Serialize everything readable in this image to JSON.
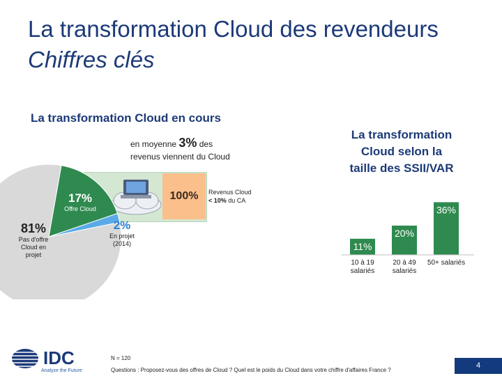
{
  "slide": {
    "title": "La transformation Cloud des revendeurs",
    "subtitle": "Chiffres clés",
    "left_heading": "La transformation Cloud en cours",
    "right_heading_lines": [
      "La transformation",
      "Cloud selon la",
      "taille des SSII/VAR"
    ],
    "avg_pre": "en moyenne ",
    "avg_value": "3%",
    "avg_post": " des",
    "avg_line2": "revenus viennent du Cloud",
    "callout_value": "100%",
    "rev_label_line1": "Revenus Cloud",
    "rev_label_bold": "< 10%",
    "rev_label_rest": " du CA",
    "note_n": "N = 120",
    "note_questions": "Questions : Proposez-vous des offres de Cloud ? Quel est le poids du Cloud dans votre chiffre d'affaires France ?",
    "logo_text": "IDC",
    "logo_tagline": "Analyze the Future",
    "page_number": "4"
  },
  "colors": {
    "title": "#1c3a78",
    "pie_gray": "#d9d9d9",
    "pie_green": "#2f8a4f",
    "pie_blue": "#5aaae8",
    "bar_green": "#2f8a4f",
    "callout_bg": "#d3e7d2",
    "orange": "#fbbf8c",
    "navy": "#123a7c"
  },
  "chart_data": [
    {
      "type": "pie",
      "slices": [
        {
          "label": "Pas d'offre Cloud en projet",
          "value": 81,
          "value_label": "81%"
        },
        {
          "label": "Offre Cloud",
          "value": 17,
          "value_label": "17%"
        },
        {
          "label": "En projet (2014)",
          "value": 2,
          "value_label": "2%"
        }
      ]
    },
    {
      "type": "bar",
      "categories": [
        "10 à 19 salariés",
        "20 à 49 salariés",
        "50+ salariés"
      ],
      "category_lines": [
        [
          "10 à 19",
          "salariés"
        ],
        [
          "20 à 49",
          "salariés"
        ],
        [
          "50+ salariés"
        ]
      ],
      "values": [
        11,
        20,
        36
      ],
      "value_labels": [
        "11%",
        "20%",
        "36%"
      ],
      "ylim": [
        0,
        40
      ]
    }
  ]
}
